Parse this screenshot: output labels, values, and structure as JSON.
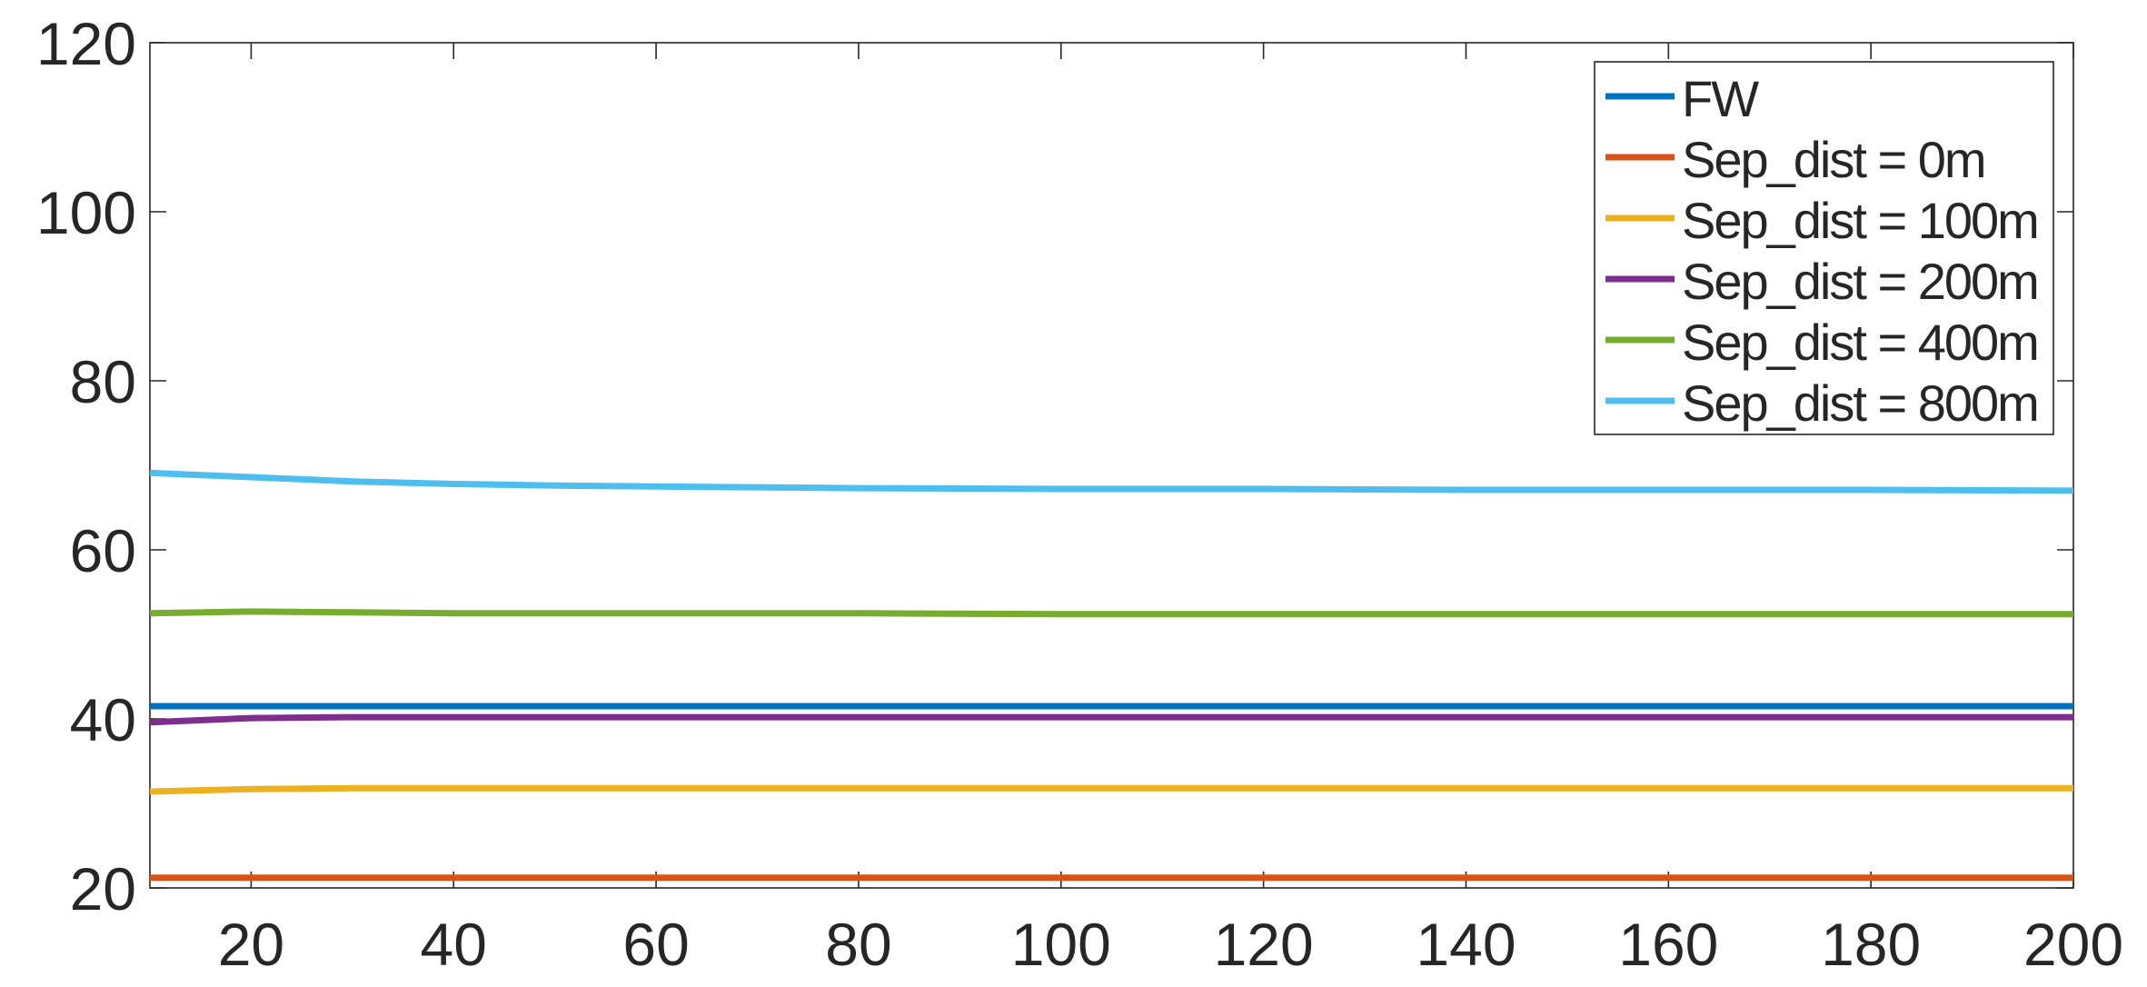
{
  "chart_data": {
    "type": "line",
    "title": "",
    "xlabel": "",
    "ylabel": "",
    "xlim": [
      10,
      200
    ],
    "ylim": [
      20,
      120
    ],
    "xticks": [
      20,
      40,
      60,
      80,
      100,
      120,
      140,
      160,
      180,
      200
    ],
    "yticks": [
      20,
      40,
      60,
      80,
      100,
      120
    ],
    "grid": false,
    "legend_position": "top-right",
    "x": [
      10,
      20,
      30,
      40,
      50,
      60,
      80,
      100,
      120,
      140,
      160,
      180,
      200
    ],
    "series": [
      {
        "name": "FW",
        "color": "#0072BD",
        "values": [
          41.5,
          41.5,
          41.5,
          41.5,
          41.5,
          41.5,
          41.5,
          41.5,
          41.5,
          41.5,
          41.5,
          41.5,
          41.5
        ]
      },
      {
        "name": "Sep_dist = 0m",
        "color": "#D95319",
        "values": [
          21.2,
          21.2,
          21.2,
          21.2,
          21.2,
          21.2,
          21.2,
          21.2,
          21.2,
          21.2,
          21.2,
          21.2,
          21.2
        ]
      },
      {
        "name": "Sep_dist = 100m",
        "color": "#EDB120",
        "values": [
          31.4,
          31.7,
          31.8,
          31.8,
          31.8,
          31.8,
          31.8,
          31.8,
          31.8,
          31.8,
          31.8,
          31.8,
          31.8
        ]
      },
      {
        "name": "Sep_dist = 200m",
        "color": "#7E2F8E",
        "values": [
          39.6,
          40.1,
          40.2,
          40.2,
          40.2,
          40.2,
          40.2,
          40.2,
          40.2,
          40.2,
          40.2,
          40.2,
          40.2
        ]
      },
      {
        "name": "Sep_dist = 400m",
        "color": "#77AC30",
        "values": [
          52.5,
          52.7,
          52.6,
          52.5,
          52.5,
          52.5,
          52.5,
          52.4,
          52.4,
          52.4,
          52.4,
          52.4,
          52.4
        ]
      },
      {
        "name": "Sep_dist = 800m",
        "color": "#4DBEEE",
        "values": [
          69.1,
          68.6,
          68.1,
          67.8,
          67.6,
          67.5,
          67.3,
          67.2,
          67.2,
          67.1,
          67.1,
          67.1,
          67.0
        ]
      }
    ]
  }
}
